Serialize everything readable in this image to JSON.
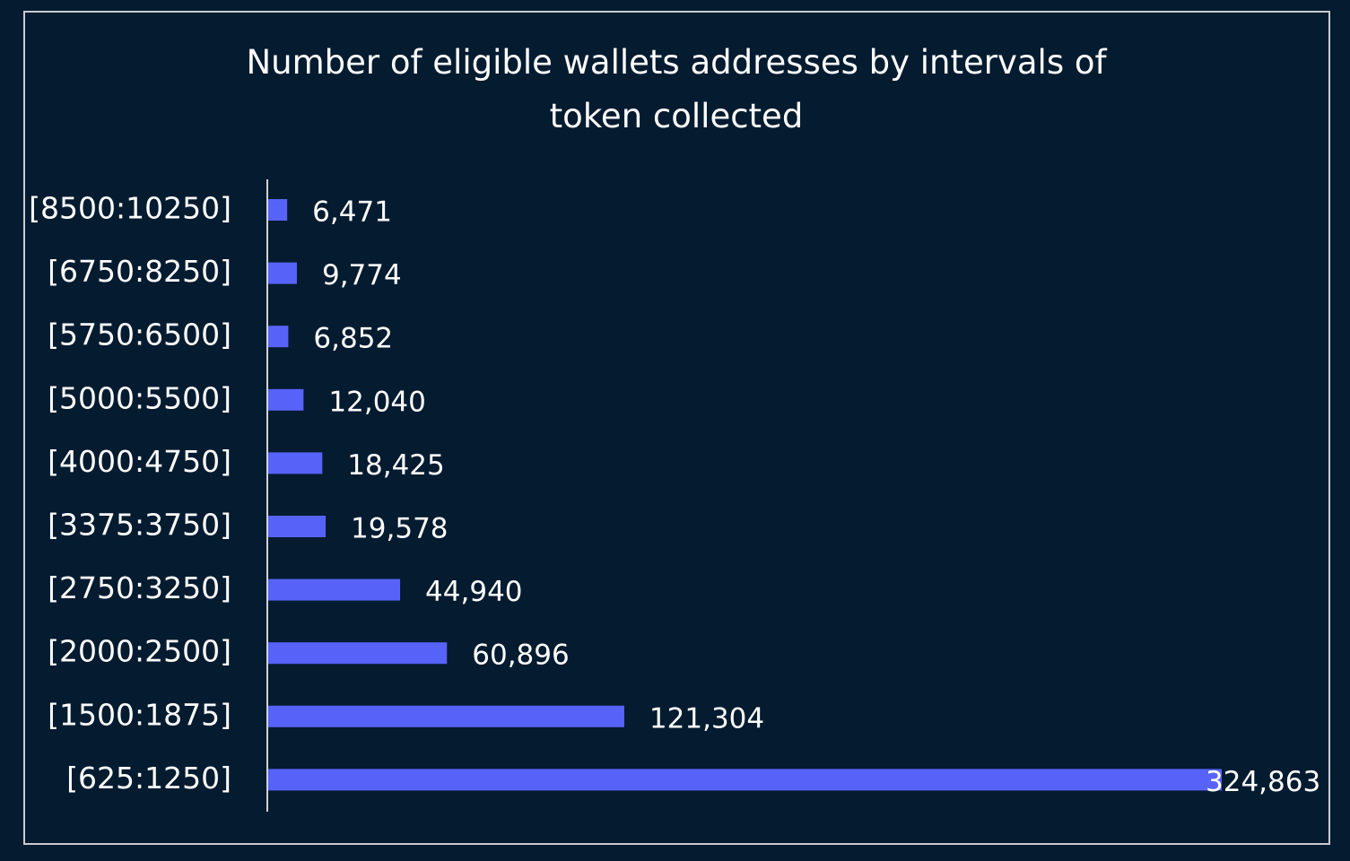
{
  "chart_data": {
    "type": "bar",
    "orientation": "horizontal",
    "title": "Number of eligible wallets addresses by intervals of token collected",
    "categories": [
      "[8500:10250]",
      "[6750:8250]",
      "[5750:6500]",
      "[5000:5500]",
      "[4000:4750]",
      "[3375:3750]",
      "[2750:3250]",
      "[2000:2500]",
      "[1500:1875]",
      "[625:1250]"
    ],
    "values": [
      6471,
      9774,
      6852,
      12040,
      18425,
      19578,
      44940,
      60896,
      121304,
      324863
    ],
    "value_labels": [
      "6,471",
      "9,774",
      "6,852",
      "12,040",
      "18,425",
      "19,578",
      "44,940",
      "60,896",
      "121,304",
      "324,863"
    ],
    "color": "#5763f8"
  }
}
